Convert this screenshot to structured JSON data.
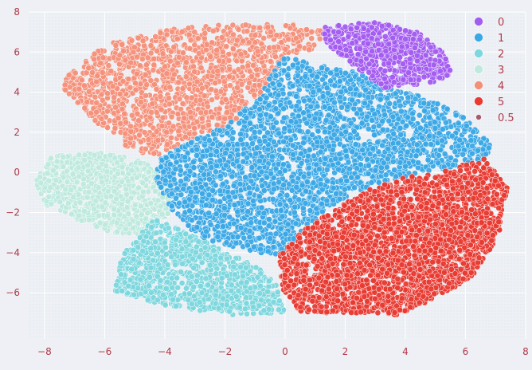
{
  "chart_data": {
    "type": "scatter",
    "title": "",
    "xlabel": "",
    "ylabel": "",
    "xlim": [
      -8.5,
      8
    ],
    "ylim": [
      -8.3,
      8
    ],
    "xticks": [
      -8,
      -6,
      -4,
      -2,
      0,
      2,
      4,
      6,
      8
    ],
    "yticks": [
      -6,
      -4,
      -2,
      0,
      2,
      4,
      6,
      8
    ],
    "grid": true,
    "legend_placement": "top-right",
    "tick_color": "#b03a48",
    "background": "#eef0f5",
    "series": [
      {
        "name": "0",
        "color": "#a35cf0",
        "approx_count": 700,
        "region_polygon": [
          [
            1.2,
            7.3
          ],
          [
            3.0,
            7.5
          ],
          [
            4.4,
            7.0
          ],
          [
            5.3,
            5.9
          ],
          [
            5.6,
            4.7
          ],
          [
            4.6,
            4.4
          ],
          [
            3.3,
            4.2
          ],
          [
            2.3,
            5.3
          ],
          [
            1.4,
            6.3
          ]
        ]
      },
      {
        "name": "1",
        "color": "#3ba8e6",
        "approx_count": 2800,
        "region_polygon": [
          [
            -0.1,
            5.8
          ],
          [
            1.3,
            5.3
          ],
          [
            2.4,
            5.0
          ],
          [
            3.2,
            4.3
          ],
          [
            4.6,
            3.8
          ],
          [
            5.9,
            2.8
          ],
          [
            6.9,
            1.3
          ],
          [
            6.6,
            0.6
          ],
          [
            5.0,
            0.1
          ],
          [
            3.6,
            -0.4
          ],
          [
            2.3,
            -1.0
          ],
          [
            1.4,
            -1.8
          ],
          [
            0.6,
            -2.9
          ],
          [
            -0.1,
            -4.2
          ],
          [
            -0.9,
            -4.0
          ],
          [
            -2.0,
            -3.7
          ],
          [
            -2.9,
            -3.2
          ],
          [
            -3.8,
            -1.8
          ],
          [
            -4.3,
            -0.3
          ],
          [
            -4.2,
            0.6
          ],
          [
            -3.1,
            1.6
          ],
          [
            -1.9,
            2.4
          ],
          [
            -0.9,
            3.7
          ]
        ]
      },
      {
        "name": "2",
        "color": "#7dd7dd",
        "approx_count": 1100,
        "region_polygon": [
          [
            -5.2,
            -3.6
          ],
          [
            -4.3,
            -2.3
          ],
          [
            -3.2,
            -3.0
          ],
          [
            -2.1,
            -3.9
          ],
          [
            -1.0,
            -4.6
          ],
          [
            -0.3,
            -5.6
          ],
          [
            0.0,
            -7.0
          ],
          [
            -1.8,
            -7.1
          ],
          [
            -4.2,
            -6.6
          ],
          [
            -5.7,
            -5.9
          ],
          [
            -5.5,
            -4.6
          ]
        ]
      },
      {
        "name": "3",
        "color": "#bfe9dd",
        "approx_count": 900,
        "region_polygon": [
          [
            -7.8,
            0.8
          ],
          [
            -6.2,
            1.0
          ],
          [
            -4.7,
            0.6
          ],
          [
            -3.8,
            -0.6
          ],
          [
            -3.9,
            -2.1
          ],
          [
            -4.6,
            -3.1
          ],
          [
            -5.8,
            -3.0
          ],
          [
            -7.0,
            -2.3
          ],
          [
            -8.1,
            -1.5
          ],
          [
            -8.3,
            -0.5
          ]
        ]
      },
      {
        "name": "4",
        "color": "#f4907a",
        "approx_count": 1500,
        "region_polygon": [
          [
            -7.2,
            5.0
          ],
          [
            -5.9,
            6.4
          ],
          [
            -4.0,
            7.1
          ],
          [
            -2.0,
            7.4
          ],
          [
            0.4,
            7.4
          ],
          [
            1.3,
            7.0
          ],
          [
            0.9,
            6.0
          ],
          [
            0.0,
            5.8
          ],
          [
            -0.6,
            4.2
          ],
          [
            -1.3,
            2.8
          ],
          [
            -2.1,
            2.2
          ],
          [
            -3.2,
            1.6
          ],
          [
            -4.3,
            0.8
          ],
          [
            -5.1,
            1.1
          ],
          [
            -6.2,
            2.4
          ],
          [
            -7.4,
            4.2
          ]
        ]
      },
      {
        "name": "5",
        "color": "#e83a32",
        "approx_count": 2700,
        "region_polygon": [
          [
            -0.2,
            -4.0
          ],
          [
            0.6,
            -2.9
          ],
          [
            1.5,
            -2.0
          ],
          [
            2.4,
            -1.1
          ],
          [
            3.8,
            -0.3
          ],
          [
            5.2,
            0.0
          ],
          [
            6.6,
            0.7
          ],
          [
            7.4,
            -0.7
          ],
          [
            7.1,
            -3.2
          ],
          [
            6.2,
            -5.2
          ],
          [
            4.9,
            -6.4
          ],
          [
            3.8,
            -7.1
          ],
          [
            2.0,
            -7.0
          ],
          [
            0.5,
            -7.0
          ],
          [
            -0.1,
            -5.8
          ]
        ]
      }
    ],
    "size_legend": {
      "label": "0.5",
      "color": "#a35c6c"
    }
  }
}
